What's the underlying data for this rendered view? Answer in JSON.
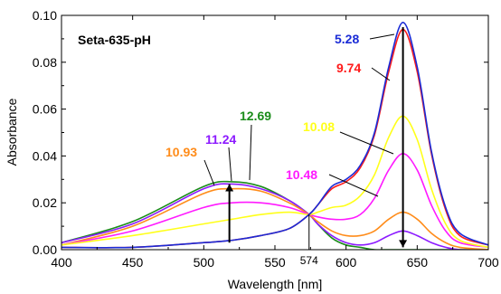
{
  "chart_data": {
    "type": "line",
    "title": "Seta-635-pH",
    "xlabel": "Wavelength [nm]",
    "ylabel": "Absorbance",
    "xlim": [
      400,
      700
    ],
    "ylim": [
      0,
      0.1
    ],
    "xticks": [
      "400",
      "450",
      "500",
      "550",
      "600",
      "650",
      "700"
    ],
    "yticks": [
      "0.00",
      "0.02",
      "0.04",
      "0.06",
      "0.08",
      "0.10"
    ],
    "grid": false,
    "isosbestic": {
      "label": "574",
      "x": 574
    },
    "arrows": [
      {
        "x": 518,
        "from": 0.003,
        "to": 0.028,
        "direction": "up"
      },
      {
        "x": 640,
        "from": 0.095,
        "to": 0.001,
        "direction": "down"
      }
    ],
    "series": [
      {
        "name": "5.28",
        "color": "#1a2bd6",
        "x": [
          400,
          450,
          500,
          520,
          540,
          560,
          574,
          580,
          590,
          600,
          610,
          620,
          630,
          640,
          650,
          660,
          670,
          680,
          700
        ],
        "y": [
          0.001,
          0.001,
          0.003,
          0.004,
          0.006,
          0.009,
          0.015,
          0.019,
          0.027,
          0.03,
          0.036,
          0.05,
          0.078,
          0.097,
          0.078,
          0.042,
          0.018,
          0.007,
          0.002
        ]
      },
      {
        "name": "9.74",
        "color": "#ff1a1a",
        "x": [
          400,
          450,
          500,
          520,
          540,
          560,
          574,
          580,
          590,
          600,
          610,
          620,
          630,
          640,
          650,
          660,
          670,
          680,
          700
        ],
        "y": [
          0.001,
          0.001,
          0.003,
          0.004,
          0.006,
          0.009,
          0.015,
          0.019,
          0.026,
          0.029,
          0.035,
          0.049,
          0.076,
          0.094,
          0.076,
          0.041,
          0.017,
          0.006,
          0.002
        ]
      },
      {
        "name": "10.08",
        "color": "#ffff1a",
        "x": [
          400,
          450,
          500,
          520,
          540,
          560,
          574,
          580,
          590,
          600,
          610,
          620,
          630,
          640,
          650,
          660,
          670,
          680,
          700
        ],
        "y": [
          0.002,
          0.006,
          0.011,
          0.013,
          0.015,
          0.016,
          0.015,
          0.016,
          0.018,
          0.019,
          0.023,
          0.032,
          0.048,
          0.057,
          0.047,
          0.026,
          0.011,
          0.004,
          0.001
        ]
      },
      {
        "name": "10.48",
        "color": "#ff1aff",
        "x": [
          400,
          450,
          500,
          520,
          540,
          560,
          574,
          580,
          590,
          600,
          610,
          620,
          630,
          640,
          650,
          660,
          670,
          680,
          700
        ],
        "y": [
          0.002,
          0.008,
          0.018,
          0.02,
          0.02,
          0.018,
          0.015,
          0.014,
          0.013,
          0.013,
          0.015,
          0.022,
          0.034,
          0.041,
          0.034,
          0.019,
          0.008,
          0.003,
          0.001
        ]
      },
      {
        "name": "10.93",
        "color": "#ff8c1a",
        "x": [
          400,
          450,
          500,
          520,
          540,
          560,
          574,
          580,
          590,
          600,
          610,
          620,
          630,
          640,
          650,
          660,
          670,
          680,
          700
        ],
        "y": [
          0.002,
          0.01,
          0.024,
          0.026,
          0.025,
          0.02,
          0.015,
          0.012,
          0.008,
          0.006,
          0.006,
          0.008,
          0.013,
          0.016,
          0.013,
          0.007,
          0.003,
          0.001,
          0.0
        ]
      },
      {
        "name": "11.24",
        "color": "#8c1aff",
        "x": [
          400,
          450,
          500,
          520,
          540,
          560,
          574,
          580,
          590,
          600,
          610,
          620,
          630,
          640,
          650,
          660,
          670,
          680,
          700
        ],
        "y": [
          0.003,
          0.011,
          0.026,
          0.028,
          0.026,
          0.021,
          0.015,
          0.011,
          0.006,
          0.003,
          0.002,
          0.003,
          0.006,
          0.008,
          0.006,
          0.003,
          0.001,
          0.0,
          0.0
        ]
      },
      {
        "name": "12.69",
        "color": "#1a8c1a",
        "x": [
          400,
          450,
          500,
          520,
          540,
          560,
          574,
          580,
          590,
          600,
          610,
          620,
          630,
          640,
          650,
          660,
          670,
          680,
          700
        ],
        "y": [
          0.003,
          0.012,
          0.027,
          0.029,
          0.027,
          0.021,
          0.015,
          0.011,
          0.005,
          0.002,
          0.001,
          0.0,
          0.0,
          0.0,
          0.0,
          0.0,
          0.0,
          0.0,
          0.0
        ]
      }
    ]
  }
}
